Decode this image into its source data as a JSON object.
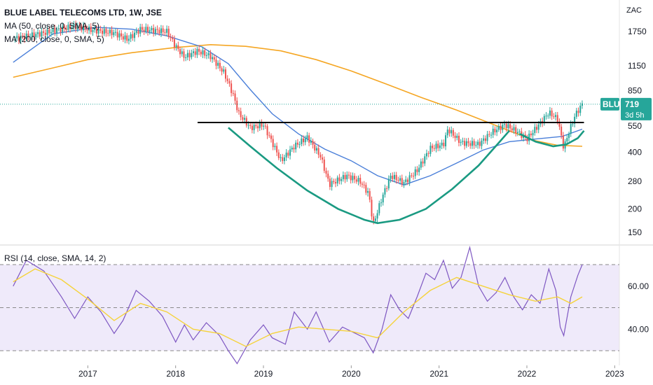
{
  "chart_data": [
    {
      "type": "candlestick",
      "title": "BLUE LABEL TELECOMS LTD, 1W, JSE",
      "currency": "ZAC",
      "y_scale": "log",
      "x_ticks": [
        "2017",
        "2018",
        "2019",
        "2020",
        "2021",
        "2022",
        "2023"
      ],
      "y_ticks": [
        1750,
        1150,
        850,
        550,
        400,
        280,
        200,
        150
      ],
      "price_series": [
        {
          "x": 2016.15,
          "y": 1600
        },
        {
          "x": 2016.5,
          "y": 1720
        },
        {
          "x": 2016.85,
          "y": 1870
        },
        {
          "x": 2017.05,
          "y": 1780
        },
        {
          "x": 2017.3,
          "y": 1720
        },
        {
          "x": 2017.45,
          "y": 1590
        },
        {
          "x": 2017.6,
          "y": 1800
        },
        {
          "x": 2017.9,
          "y": 1750
        },
        {
          "x": 2018.0,
          "y": 1460
        },
        {
          "x": 2018.1,
          "y": 1280
        },
        {
          "x": 2018.25,
          "y": 1380
        },
        {
          "x": 2018.4,
          "y": 1290
        },
        {
          "x": 2018.55,
          "y": 1060
        },
        {
          "x": 2018.65,
          "y": 820
        },
        {
          "x": 2018.72,
          "y": 640
        },
        {
          "x": 2018.85,
          "y": 540
        },
        {
          "x": 2019.0,
          "y": 560
        },
        {
          "x": 2019.1,
          "y": 450
        },
        {
          "x": 2019.2,
          "y": 360
        },
        {
          "x": 2019.35,
          "y": 430
        },
        {
          "x": 2019.5,
          "y": 480
        },
        {
          "x": 2019.65,
          "y": 380
        },
        {
          "x": 2019.75,
          "y": 270
        },
        {
          "x": 2019.95,
          "y": 300
        },
        {
          "x": 2020.1,
          "y": 280
        },
        {
          "x": 2020.2,
          "y": 240
        },
        {
          "x": 2020.25,
          "y": 165
        },
        {
          "x": 2020.35,
          "y": 230
        },
        {
          "x": 2020.45,
          "y": 300
        },
        {
          "x": 2020.6,
          "y": 275
        },
        {
          "x": 2020.75,
          "y": 320
        },
        {
          "x": 2020.9,
          "y": 420
        },
        {
          "x": 2021.05,
          "y": 440
        },
        {
          "x": 2021.1,
          "y": 530
        },
        {
          "x": 2021.25,
          "y": 450
        },
        {
          "x": 2021.45,
          "y": 440
        },
        {
          "x": 2021.6,
          "y": 510
        },
        {
          "x": 2021.75,
          "y": 560
        },
        {
          "x": 2021.9,
          "y": 510
        },
        {
          "x": 2022.0,
          "y": 470
        },
        {
          "x": 2022.15,
          "y": 570
        },
        {
          "x": 2022.25,
          "y": 650
        },
        {
          "x": 2022.35,
          "y": 600
        },
        {
          "x": 2022.42,
          "y": 420
        },
        {
          "x": 2022.47,
          "y": 500
        },
        {
          "x": 2022.55,
          "y": 630
        },
        {
          "x": 2022.63,
          "y": 719
        }
      ],
      "overlays": [
        {
          "name": "MA (50, close, 0, SMA, 5)",
          "color": "#4a7fd9",
          "points": [
            {
              "x": 2016.15,
              "y": 1200
            },
            {
              "x": 2016.6,
              "y": 1700
            },
            {
              "x": 2017.1,
              "y": 1840
            },
            {
              "x": 2017.5,
              "y": 1800
            },
            {
              "x": 2017.9,
              "y": 1660
            },
            {
              "x": 2018.3,
              "y": 1450
            },
            {
              "x": 2018.6,
              "y": 1180
            },
            {
              "x": 2018.85,
              "y": 860
            },
            {
              "x": 2019.1,
              "y": 640
            },
            {
              "x": 2019.4,
              "y": 500
            },
            {
              "x": 2019.7,
              "y": 415
            },
            {
              "x": 2020.0,
              "y": 360
            },
            {
              "x": 2020.3,
              "y": 300
            },
            {
              "x": 2020.6,
              "y": 268
            },
            {
              "x": 2020.9,
              "y": 300
            },
            {
              "x": 2021.2,
              "y": 350
            },
            {
              "x": 2021.5,
              "y": 410
            },
            {
              "x": 2021.8,
              "y": 455
            },
            {
              "x": 2022.1,
              "y": 470
            },
            {
              "x": 2022.4,
              "y": 485
            },
            {
              "x": 2022.63,
              "y": 530
            }
          ]
        },
        {
          "name": "MA (200, close, 0, SMA, 5)",
          "color": "#f5a623",
          "points": [
            {
              "x": 2016.15,
              "y": 1000
            },
            {
              "x": 2016.6,
              "y": 1120
            },
            {
              "x": 2017.0,
              "y": 1240
            },
            {
              "x": 2017.5,
              "y": 1350
            },
            {
              "x": 2018.0,
              "y": 1440
            },
            {
              "x": 2018.4,
              "y": 1490
            },
            {
              "x": 2018.8,
              "y": 1460
            },
            {
              "x": 2019.2,
              "y": 1380
            },
            {
              "x": 2019.6,
              "y": 1240
            },
            {
              "x": 2020.0,
              "y": 1080
            },
            {
              "x": 2020.4,
              "y": 920
            },
            {
              "x": 2020.8,
              "y": 780
            },
            {
              "x": 2021.2,
              "y": 670
            },
            {
              "x": 2021.5,
              "y": 590
            },
            {
              "x": 2021.8,
              "y": 520
            },
            {
              "x": 2022.1,
              "y": 460
            },
            {
              "x": 2022.35,
              "y": 435
            },
            {
              "x": 2022.63,
              "y": 430
            }
          ]
        }
      ],
      "annotations": {
        "resistance_line": {
          "from_x": 2018.25,
          "to_x": 2022.65,
          "y": 575
        },
        "cup": {
          "color": "#1a9a82",
          "points": [
            {
              "x": 2018.6,
              "y": 540
            },
            {
              "x": 2018.85,
              "y": 430
            },
            {
              "x": 2019.15,
              "y": 330
            },
            {
              "x": 2019.5,
              "y": 250
            },
            {
              "x": 2019.85,
              "y": 200
            },
            {
              "x": 2020.15,
              "y": 175
            },
            {
              "x": 2020.3,
              "y": 168
            },
            {
              "x": 2020.55,
              "y": 175
            },
            {
              "x": 2020.85,
              "y": 200
            },
            {
              "x": 2021.15,
              "y": 255
            },
            {
              "x": 2021.45,
              "y": 340
            },
            {
              "x": 2021.7,
              "y": 460
            },
            {
              "x": 2021.8,
              "y": 520
            }
          ]
        },
        "handle": {
          "color": "#1a9a82",
          "points": [
            {
              "x": 2021.92,
              "y": 500
            },
            {
              "x": 2022.1,
              "y": 455
            },
            {
              "x": 2022.3,
              "y": 430
            },
            {
              "x": 2022.45,
              "y": 440
            },
            {
              "x": 2022.58,
              "y": 475
            },
            {
              "x": 2022.65,
              "y": 520
            }
          ]
        }
      },
      "last_price": {
        "symbol": "BLU",
        "value": "719",
        "time_left": "3d 5h"
      }
    },
    {
      "type": "line",
      "title": "RSI (14, close, SMA, 14, 2)",
      "ylim": [
        22,
        80
      ],
      "y_ticks": [
        "40.00",
        "60.00"
      ],
      "bands": [
        30,
        50,
        70
      ],
      "series": [
        {
          "color": "#7e57c2",
          "points": [
            {
              "x": 2016.15,
              "y": 60
            },
            {
              "x": 2016.3,
              "y": 72
            },
            {
              "x": 2016.5,
              "y": 67
            },
            {
              "x": 2016.7,
              "y": 55
            },
            {
              "x": 2016.85,
              "y": 45
            },
            {
              "x": 2017.0,
              "y": 55
            },
            {
              "x": 2017.15,
              "y": 48
            },
            {
              "x": 2017.3,
              "y": 38
            },
            {
              "x": 2017.4,
              "y": 44
            },
            {
              "x": 2017.55,
              "y": 58
            },
            {
              "x": 2017.7,
              "y": 53
            },
            {
              "x": 2017.85,
              "y": 46
            },
            {
              "x": 2018.0,
              "y": 34
            },
            {
              "x": 2018.1,
              "y": 42
            },
            {
              "x": 2018.2,
              "y": 35
            },
            {
              "x": 2018.35,
              "y": 43
            },
            {
              "x": 2018.5,
              "y": 37
            },
            {
              "x": 2018.6,
              "y": 30
            },
            {
              "x": 2018.7,
              "y": 24
            },
            {
              "x": 2018.85,
              "y": 35
            },
            {
              "x": 2019.0,
              "y": 42
            },
            {
              "x": 2019.1,
              "y": 36
            },
            {
              "x": 2019.25,
              "y": 33
            },
            {
              "x": 2019.35,
              "y": 48
            },
            {
              "x": 2019.5,
              "y": 40
            },
            {
              "x": 2019.6,
              "y": 48
            },
            {
              "x": 2019.75,
              "y": 34
            },
            {
              "x": 2019.9,
              "y": 41
            },
            {
              "x": 2020.05,
              "y": 38
            },
            {
              "x": 2020.15,
              "y": 36
            },
            {
              "x": 2020.25,
              "y": 29
            },
            {
              "x": 2020.35,
              "y": 40
            },
            {
              "x": 2020.45,
              "y": 56
            },
            {
              "x": 2020.55,
              "y": 49
            },
            {
              "x": 2020.65,
              "y": 45
            },
            {
              "x": 2020.75,
              "y": 55
            },
            {
              "x": 2020.85,
              "y": 66
            },
            {
              "x": 2020.95,
              "y": 63
            },
            {
              "x": 2021.05,
              "y": 72
            },
            {
              "x": 2021.15,
              "y": 59
            },
            {
              "x": 2021.25,
              "y": 64
            },
            {
              "x": 2021.35,
              "y": 78
            },
            {
              "x": 2021.45,
              "y": 60
            },
            {
              "x": 2021.55,
              "y": 53
            },
            {
              "x": 2021.65,
              "y": 57
            },
            {
              "x": 2021.75,
              "y": 64
            },
            {
              "x": 2021.85,
              "y": 55
            },
            {
              "x": 2021.95,
              "y": 49
            },
            {
              "x": 2022.05,
              "y": 56
            },
            {
              "x": 2022.15,
              "y": 52
            },
            {
              "x": 2022.25,
              "y": 68
            },
            {
              "x": 2022.33,
              "y": 58
            },
            {
              "x": 2022.38,
              "y": 41
            },
            {
              "x": 2022.42,
              "y": 37
            },
            {
              "x": 2022.5,
              "y": 55
            },
            {
              "x": 2022.58,
              "y": 65
            },
            {
              "x": 2022.63,
              "y": 70
            }
          ]
        },
        {
          "color": "#f5d33b",
          "points": [
            {
              "x": 2016.15,
              "y": 62
            },
            {
              "x": 2016.4,
              "y": 68
            },
            {
              "x": 2016.7,
              "y": 63
            },
            {
              "x": 2017.0,
              "y": 54
            },
            {
              "x": 2017.3,
              "y": 44
            },
            {
              "x": 2017.6,
              "y": 52
            },
            {
              "x": 2017.9,
              "y": 48
            },
            {
              "x": 2018.2,
              "y": 40
            },
            {
              "x": 2018.5,
              "y": 38
            },
            {
              "x": 2018.8,
              "y": 32
            },
            {
              "x": 2019.1,
              "y": 38
            },
            {
              "x": 2019.4,
              "y": 41
            },
            {
              "x": 2019.7,
              "y": 40
            },
            {
              "x": 2020.0,
              "y": 39
            },
            {
              "x": 2020.3,
              "y": 36
            },
            {
              "x": 2020.6,
              "y": 48
            },
            {
              "x": 2020.9,
              "y": 58
            },
            {
              "x": 2021.2,
              "y": 64
            },
            {
              "x": 2021.5,
              "y": 60
            },
            {
              "x": 2021.8,
              "y": 56
            },
            {
              "x": 2022.1,
              "y": 53
            },
            {
              "x": 2022.35,
              "y": 55
            },
            {
              "x": 2022.5,
              "y": 52
            },
            {
              "x": 2022.63,
              "y": 55
            }
          ]
        }
      ]
    }
  ]
}
